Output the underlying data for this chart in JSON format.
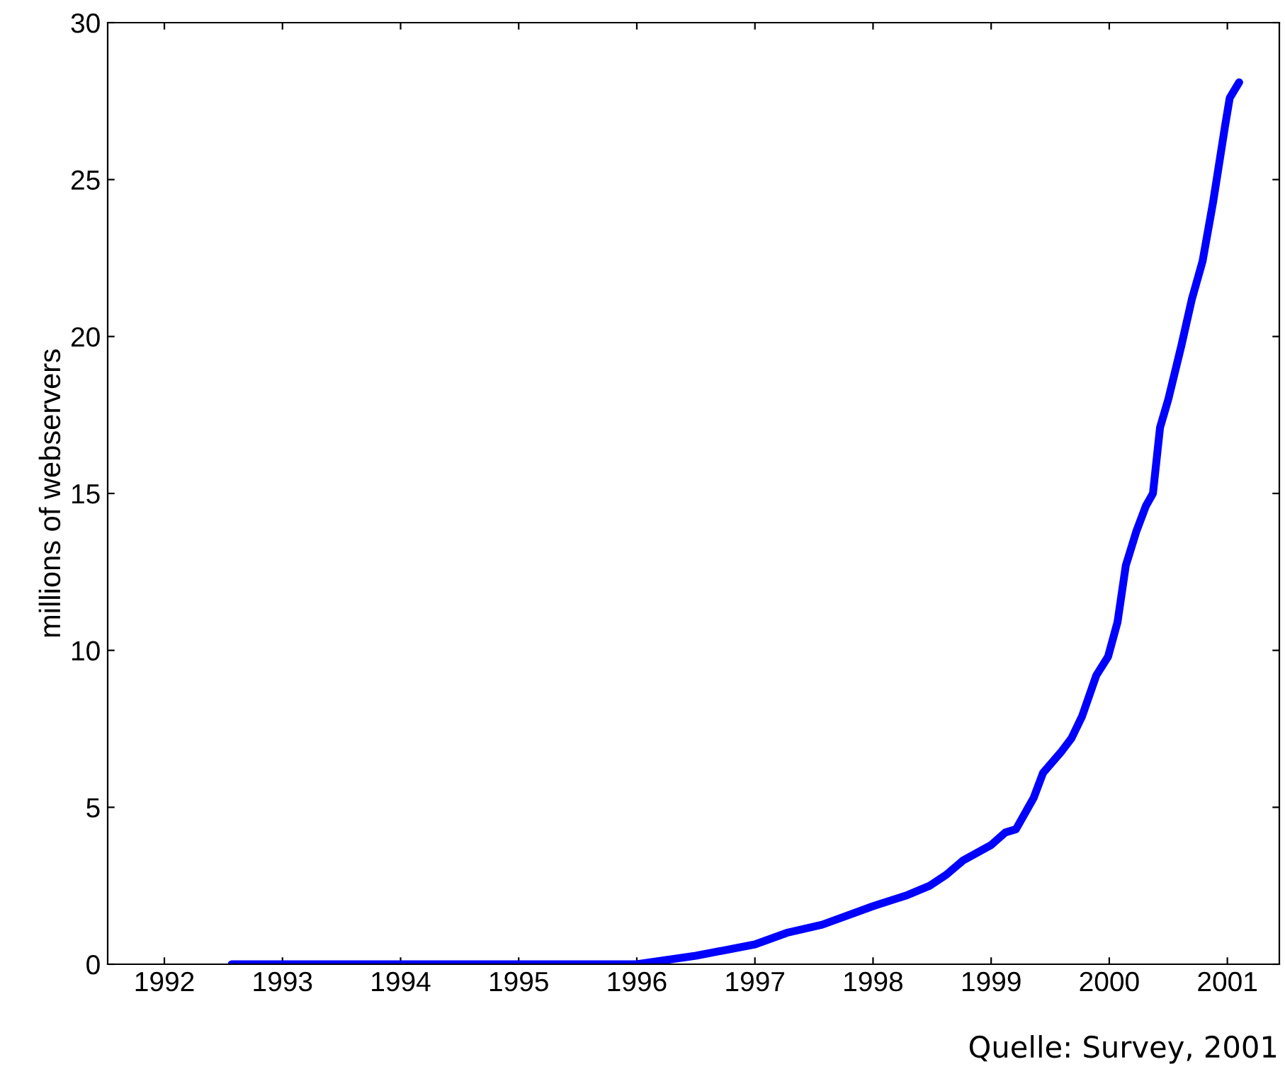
{
  "chart_data": {
    "type": "line",
    "ylabel": "millions of webservers",
    "annotations": [
      "Quelle: Survey, 2001"
    ],
    "x": [
      1992.57,
      1996.0,
      1996.5,
      1997.0,
      1997.27,
      1997.57,
      1998.0,
      1998.29,
      1998.48,
      1998.62,
      1998.76,
      1999.0,
      1999.12,
      1999.21,
      1999.3,
      1999.36,
      1999.44,
      1999.6,
      1999.68,
      1999.77,
      1999.89,
      1999.99,
      2000.07,
      2000.14,
      2000.23,
      2000.31,
      2000.37,
      2000.43,
      2000.5,
      2000.61,
      2000.7,
      2000.79,
      2000.88,
      2000.98,
      2001.02,
      2001.1
    ],
    "series": [
      {
        "color": "#0000ff",
        "values": [
          0,
          0,
          0.27,
          0.63,
          1.0,
          1.26,
          1.85,
          2.2,
          2.5,
          2.85,
          3.3,
          3.8,
          4.2,
          4.3,
          4.9,
          5.3,
          6.1,
          6.8,
          7.2,
          7.9,
          9.2,
          9.8,
          10.9,
          12.7,
          13.8,
          14.6,
          15.0,
          17.1,
          18.0,
          19.7,
          21.2,
          22.4,
          24.3,
          26.7,
          27.6,
          28.1
        ]
      }
    ],
    "xlim": [
      1991.52,
      2001.44
    ],
    "xticks": [
      1992,
      1993,
      1994,
      1995,
      1996,
      1997,
      1998,
      1999,
      2000,
      2001
    ],
    "ylim": [
      0,
      30
    ],
    "yticks": [
      0,
      5,
      10,
      15,
      20,
      25,
      30
    ],
    "marker": "none",
    "line_style": "solid"
  }
}
